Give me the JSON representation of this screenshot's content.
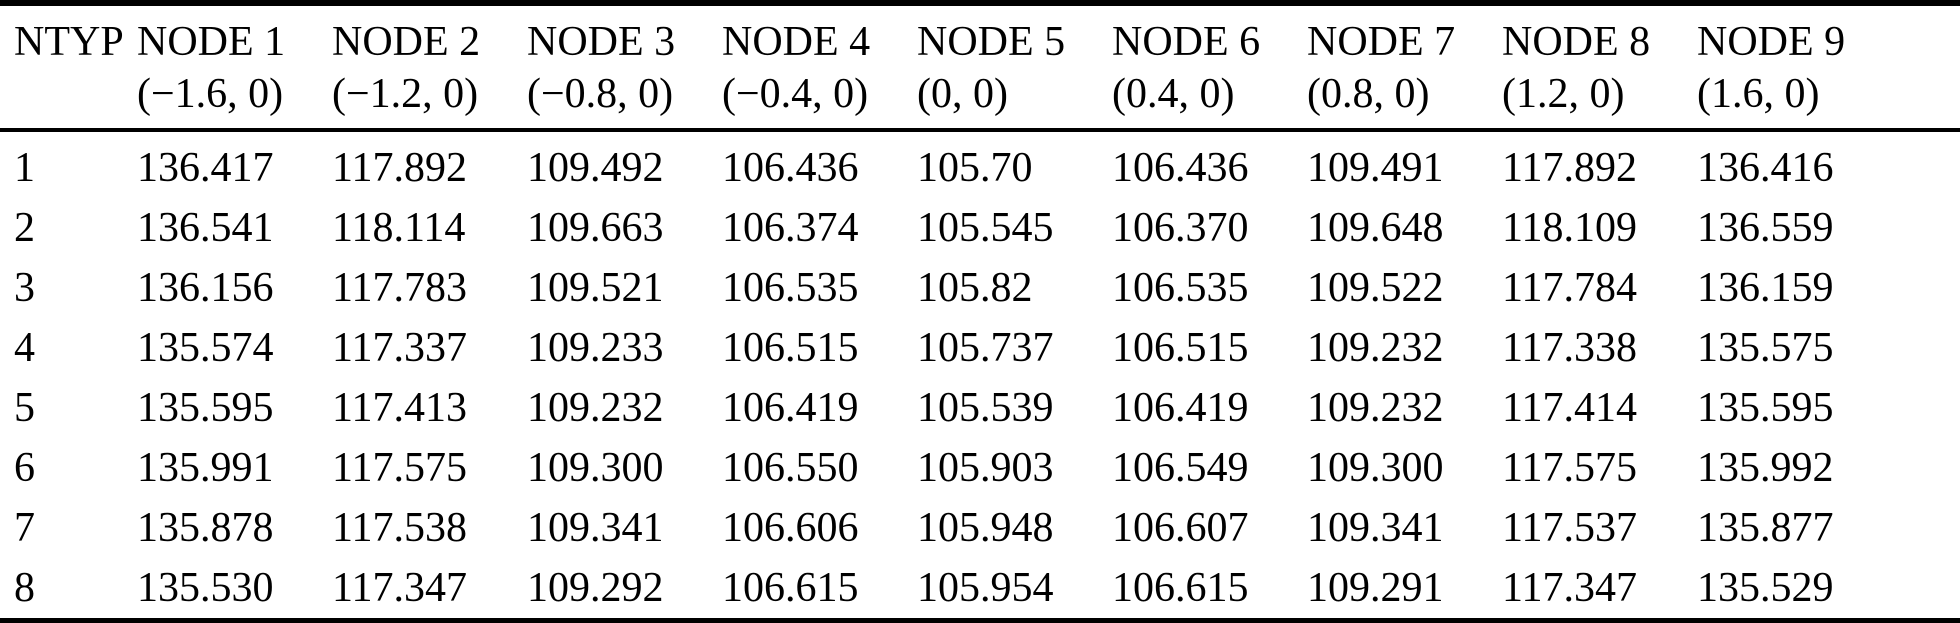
{
  "colors": {
    "background": "#ffffff",
    "text": "#000000",
    "rule": "#000000"
  },
  "table": {
    "columns": [
      {
        "label": "NTYP",
        "coord": ""
      },
      {
        "label": "NODE 1",
        "coord": "(−1.6, 0)"
      },
      {
        "label": "NODE 2",
        "coord": "(−1.2, 0)"
      },
      {
        "label": "NODE 3",
        "coord": "(−0.8, 0)"
      },
      {
        "label": "NODE 4",
        "coord": "(−0.4, 0)"
      },
      {
        "label": "NODE 5",
        "coord": "(0, 0)"
      },
      {
        "label": "NODE 6",
        "coord": "(0.4, 0)"
      },
      {
        "label": "NODE 7",
        "coord": "(0.8, 0)"
      },
      {
        "label": "NODE 8",
        "coord": "(1.2, 0)"
      },
      {
        "label": "NODE 9",
        "coord": "(1.6, 0)"
      }
    ],
    "rows": [
      {
        "ntyp": "1",
        "values": [
          "136.417",
          "117.892",
          "109.492",
          "106.436",
          "105.70",
          "106.436",
          "109.491",
          "117.892",
          "136.416"
        ]
      },
      {
        "ntyp": "2",
        "values": [
          "136.541",
          "118.114",
          "109.663",
          "106.374",
          "105.545",
          "106.370",
          "109.648",
          "118.109",
          "136.559"
        ]
      },
      {
        "ntyp": "3",
        "values": [
          "136.156",
          "117.783",
          "109.521",
          "106.535",
          "105.82",
          "106.535",
          "109.522",
          "117.784",
          "136.159"
        ]
      },
      {
        "ntyp": "4",
        "values": [
          "135.574",
          "117.337",
          "109.233",
          "106.515",
          "105.737",
          "106.515",
          "109.232",
          "117.338",
          "135.575"
        ]
      },
      {
        "ntyp": "5",
        "values": [
          "135.595",
          "117.413",
          "109.232",
          "106.419",
          "105.539",
          "106.419",
          "109.232",
          "117.414",
          "135.595"
        ]
      },
      {
        "ntyp": "6",
        "values": [
          "135.991",
          "117.575",
          "109.300",
          "106.550",
          "105.903",
          "106.549",
          "109.300",
          "117.575",
          "135.992"
        ]
      },
      {
        "ntyp": "7",
        "values": [
          "135.878",
          "117.538",
          "109.341",
          "106.606",
          "105.948",
          "106.607",
          "109.341",
          "117.537",
          "135.877"
        ]
      },
      {
        "ntyp": "8",
        "values": [
          "135.530",
          "117.347",
          "109.292",
          "106.615",
          "105.954",
          "106.615",
          "109.291",
          "117.347",
          "135.529"
        ]
      }
    ]
  }
}
